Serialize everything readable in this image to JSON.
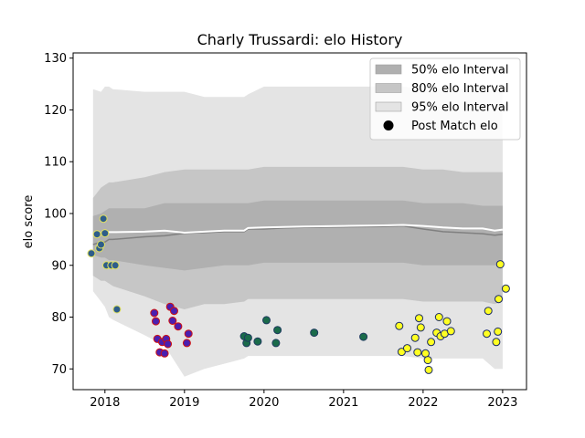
{
  "chart_data": {
    "type": "scatter",
    "title": "Charly Trussardi: elo History",
    "xlabel": "",
    "ylabel": "elo score",
    "xlim": [
      2017.6,
      2023.3
    ],
    "ylim": [
      66,
      131
    ],
    "xticks": [
      {
        "value": 2018,
        "label": "2018"
      },
      {
        "value": 2019,
        "label": "2019"
      },
      {
        "value": 2020,
        "label": "2020"
      },
      {
        "value": 2021,
        "label": "2021"
      },
      {
        "value": 2022,
        "label": "2022"
      },
      {
        "value": 2023,
        "label": "2023"
      }
    ],
    "yticks": [
      {
        "value": 70,
        "label": "70"
      },
      {
        "value": 80,
        "label": "80"
      },
      {
        "value": 90,
        "label": "90"
      },
      {
        "value": 100,
        "label": "100"
      },
      {
        "value": 110,
        "label": "110"
      },
      {
        "value": 120,
        "label": "120"
      },
      {
        "value": 130,
        "label": "130"
      }
    ],
    "grid": false,
    "legend_position": "top-right",
    "legend": [
      {
        "label": "50% elo Interval",
        "kind": "band",
        "color": "#b0b0b0"
      },
      {
        "label": "80% elo Interval",
        "kind": "band",
        "color": "#c6c6c6"
      },
      {
        "label": "95% elo Interval",
        "kind": "band",
        "color": "#e4e4e4"
      },
      {
        "label": "Post Match elo",
        "kind": "marker",
        "color": "#000000"
      }
    ],
    "colors": {
      "band50": "#b0b0b0",
      "band80": "#c6c6c6",
      "band95": "#e4e4e4",
      "mean_line": "#808080",
      "median_line": "#ffffff",
      "point_fill": "#ffff22"
    },
    "bands": {
      "x": [
        2017.85,
        2017.95,
        2018.0,
        2018.05,
        2018.1,
        2018.5,
        2018.75,
        2019.0,
        2019.25,
        2019.5,
        2019.75,
        2019.8,
        2020.0,
        2020.25,
        2020.5,
        2021.0,
        2021.5,
        2021.75,
        2022.0,
        2022.25,
        2022.5,
        2022.75,
        2022.9,
        2023.0
      ],
      "p95_low": [
        85.0,
        83.0,
        82.0,
        80.0,
        79.5,
        76.5,
        74.5,
        68.5,
        70.0,
        71.0,
        72.0,
        72.5,
        72.5,
        72.5,
        72.5,
        72.5,
        72.5,
        72.5,
        72.0,
        72.0,
        72.0,
        72.0,
        70.0,
        70.0
      ],
      "p80_low": [
        88.0,
        87.0,
        87.0,
        86.5,
        86.0,
        84.0,
        82.5,
        81.5,
        82.5,
        82.5,
        83.0,
        83.5,
        83.5,
        83.5,
        83.5,
        83.5,
        83.5,
        83.5,
        83.0,
        83.0,
        83.0,
        83.0,
        82.5,
        83.0
      ],
      "p50_low": [
        92.0,
        91.5,
        91.5,
        91.0,
        91.0,
        90.0,
        89.5,
        89.0,
        89.5,
        90.0,
        90.0,
        90.0,
        90.5,
        90.5,
        90.5,
        90.5,
        90.5,
        90.5,
        90.0,
        90.0,
        90.0,
        90.0,
        90.0,
        90.0
      ],
      "p50_high": [
        99.5,
        100.0,
        100.5,
        101.0,
        101.0,
        101.0,
        102.0,
        102.0,
        102.0,
        102.0,
        102.0,
        102.0,
        102.5,
        102.5,
        102.5,
        102.5,
        102.5,
        102.5,
        102.0,
        102.0,
        102.0,
        101.5,
        101.5,
        101.5
      ],
      "p80_high": [
        103.0,
        105.0,
        105.5,
        106.0,
        106.0,
        107.0,
        108.0,
        108.5,
        108.5,
        108.5,
        108.5,
        108.5,
        109.0,
        109.0,
        109.0,
        109.0,
        109.0,
        109.0,
        108.5,
        108.5,
        108.0,
        108.0,
        108.0,
        108.0
      ],
      "p95_high": [
        124.0,
        123.5,
        124.5,
        124.5,
        124.0,
        123.5,
        123.5,
        123.5,
        122.5,
        122.5,
        122.5,
        123.0,
        124.5,
        124.5,
        124.5,
        124.5,
        124.5,
        124.5,
        124.0,
        124.0,
        124.0,
        124.0,
        124.0,
        124.0
      ],
      "mean": [
        94.0,
        94.5,
        94.5,
        95.0,
        95.0,
        95.5,
        95.7,
        96.2,
        96.3,
        96.5,
        96.5,
        97.0,
        97.0,
        97.2,
        97.3,
        97.4,
        97.5,
        97.6,
        97.0,
        96.5,
        96.3,
        96.1,
        95.8,
        96.0
      ],
      "median": [
        96.0,
        96.2,
        96.3,
        96.4,
        96.4,
        96.5,
        96.7,
        96.3,
        96.5,
        96.7,
        96.7,
        97.2,
        97.3,
        97.4,
        97.5,
        97.6,
        97.7,
        97.8,
        97.6,
        97.3,
        97.1,
        97.1,
        96.7,
        96.9
      ]
    },
    "series": [
      {
        "edge_color": "#e0e060",
        "points": [
          [
            2017.83,
            92.3
          ],
          [
            2017.9,
            96.0
          ],
          [
            2017.93,
            93.3
          ],
          [
            2017.95,
            94.0
          ],
          [
            2017.98,
            99.0
          ],
          [
            2018.0,
            96.2
          ],
          [
            2018.02,
            90.0
          ],
          [
            2018.08,
            90.0
          ],
          [
            2018.13,
            90.0
          ],
          [
            2018.15,
            81.5
          ]
        ]
      },
      {
        "edge_color": "#d01010",
        "points": [
          [
            2018.62,
            80.8
          ],
          [
            2018.64,
            79.2
          ],
          [
            2018.66,
            75.8
          ],
          [
            2018.69,
            73.2
          ],
          [
            2018.72,
            75.2
          ],
          [
            2018.75,
            73.0
          ],
          [
            2018.77,
            75.8
          ],
          [
            2018.79,
            74.8
          ],
          [
            2018.82,
            82.0
          ],
          [
            2018.85,
            79.3
          ],
          [
            2018.87,
            81.2
          ],
          [
            2018.92,
            78.2
          ],
          [
            2019.03,
            75.0
          ],
          [
            2019.05,
            76.8
          ]
        ]
      },
      {
        "edge_color": "#1e3a5f",
        "points": [
          [
            2019.75,
            76.3
          ],
          [
            2019.78,
            75.0
          ],
          [
            2019.8,
            76.0
          ],
          [
            2019.92,
            75.3
          ],
          [
            2020.03,
            79.4
          ],
          [
            2020.15,
            75.0
          ],
          [
            2020.17,
            77.5
          ],
          [
            2020.63,
            77.0
          ],
          [
            2021.25,
            76.2
          ]
        ]
      },
      {
        "edge_color": "#1a2a66",
        "points": [
          [
            2021.7,
            78.3
          ],
          [
            2021.73,
            73.3
          ],
          [
            2021.8,
            74.0
          ],
          [
            2021.9,
            76.0
          ],
          [
            2021.93,
            73.2
          ],
          [
            2021.95,
            79.8
          ],
          [
            2021.97,
            78.0
          ],
          [
            2022.03,
            73.0
          ],
          [
            2022.06,
            71.7
          ],
          [
            2022.07,
            69.8
          ],
          [
            2022.1,
            75.2
          ],
          [
            2022.17,
            77.0
          ],
          [
            2022.2,
            80.0
          ],
          [
            2022.22,
            76.3
          ],
          [
            2022.27,
            76.8
          ],
          [
            2022.3,
            79.2
          ],
          [
            2022.35,
            77.3
          ],
          [
            2022.8,
            76.8
          ],
          [
            2022.82,
            81.2
          ],
          [
            2022.92,
            75.2
          ],
          [
            2022.94,
            77.2
          ],
          [
            2022.95,
            83.5
          ],
          [
            2022.97,
            90.2
          ],
          [
            2023.04,
            85.5
          ]
        ]
      }
    ],
    "point_fills": [
      "#2e5d8a",
      "#4a1fb0",
      "#1a6b4a",
      "#ffff22"
    ]
  }
}
